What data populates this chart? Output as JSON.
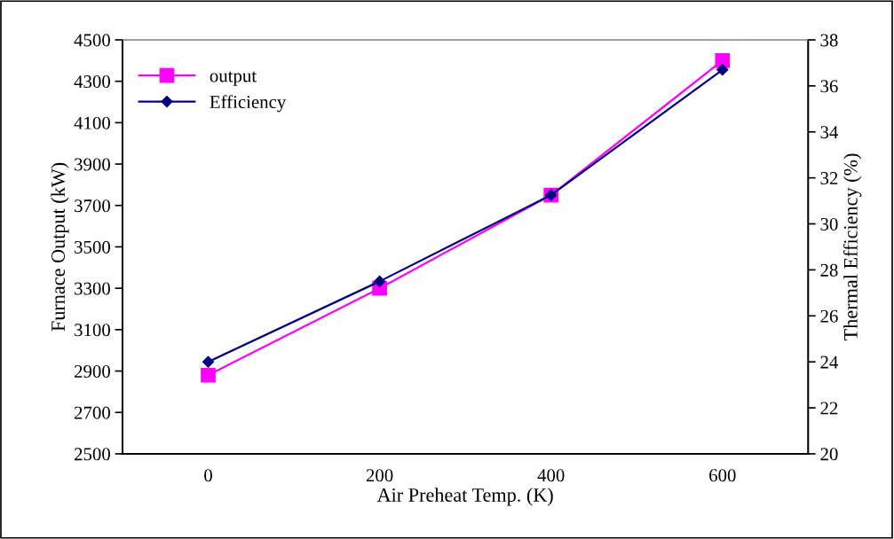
{
  "chart_data": {
    "type": "line",
    "xlabel": "Air Preheat Temp. (K)",
    "ylabel": "Furnace Output (kW)",
    "y2label": "Thermal Efficiency (%)",
    "categories": [
      "0",
      "200",
      "400",
      "600"
    ],
    "series": [
      {
        "name": "output",
        "color": "#ff00ff",
        "marker": "square",
        "values": [
          2880,
          3300,
          3750,
          4400
        ]
      },
      {
        "name": "Efficiency",
        "color": "#000080",
        "marker": "diamond",
        "axis": "y2",
        "values": [
          24.0,
          27.5,
          31.25,
          36.7
        ]
      }
    ],
    "ylim": [
      2500,
      4500
    ],
    "yticks": [
      2500,
      2700,
      2900,
      3100,
      3300,
      3500,
      3700,
      3900,
      4100,
      4300,
      4500
    ],
    "y2lim": [
      20,
      38
    ],
    "y2ticks": [
      20,
      22,
      24,
      26,
      28,
      30,
      32,
      34,
      36,
      38
    ],
    "grid": false,
    "legend": "top left"
  }
}
